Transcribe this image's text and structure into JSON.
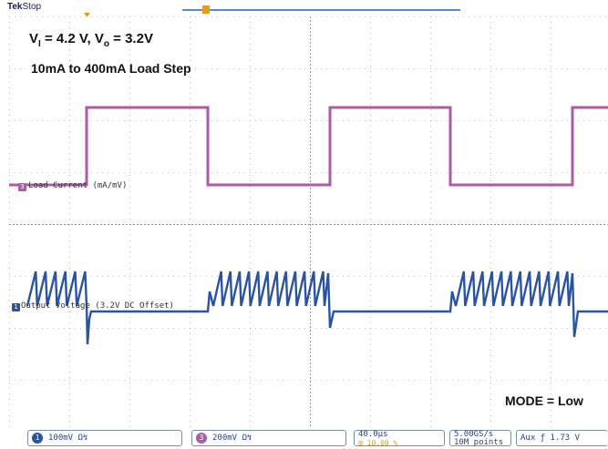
{
  "status_bar": {
    "brand": "Tek",
    "state": "Stop"
  },
  "annotations": {
    "line1_v": "V",
    "line1_sub": "I",
    "line1_mid": " = 4.2 V, V",
    "line1_sub2": "o",
    "line1_end": " = 3.2V",
    "line2": "10mA to 400mA Load Step",
    "mode": "MODE = Low"
  },
  "traces": {
    "ch3": {
      "label": "Load Current (mA/mV)",
      "marker": "3",
      "color": "#ad5aa8"
    },
    "ch1": {
      "label": "Output Voltage (3.2V DC Offset)",
      "marker": "1",
      "color": "#2b53a5"
    }
  },
  "bottom_bar": {
    "ch1": {
      "badge": "1",
      "value": "100mV Ω↯"
    },
    "ch3": {
      "badge": "3",
      "value": "200mV Ω↯"
    },
    "timebase": "40.0µs",
    "trigger_pos": "⊞ 10.00 %",
    "sample_rate": "5.00GS/s",
    "record_length": "10M points",
    "trigger": "Aux  ƒ  1.73 V"
  },
  "colors": {
    "grid": "#8a8a8a",
    "accent_orange": "#e69b1e",
    "record_bar": "#5a8ad0"
  }
}
